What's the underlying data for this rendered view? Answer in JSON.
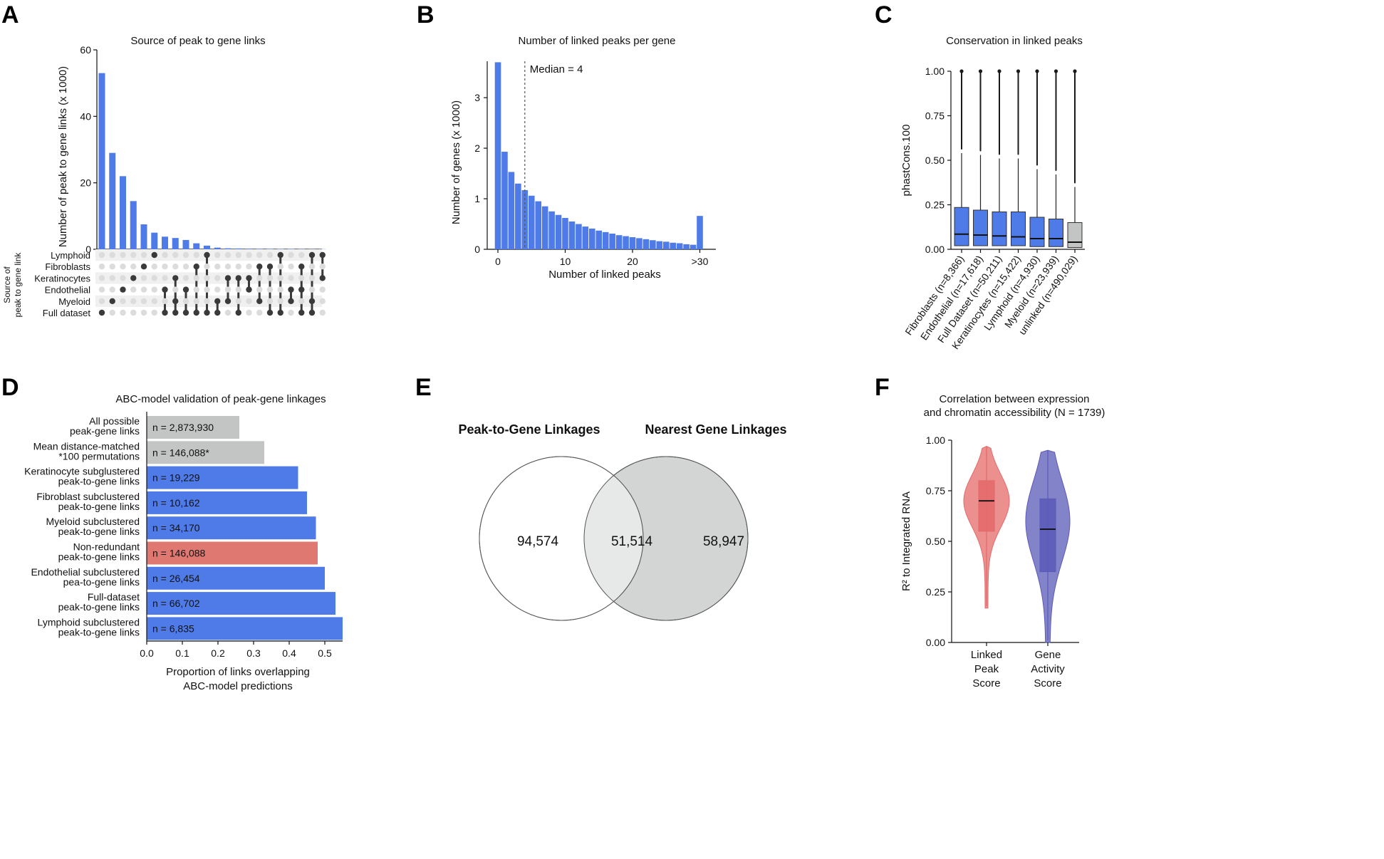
{
  "colors": {
    "blue": "#4f7be9",
    "gray": "#c3c5c5",
    "red": "#e07872",
    "dark": "#3a3a3a",
    "dot_off": "#dcdcdc",
    "stripe": "#f0f0f0",
    "violin_red": "#e46a6a",
    "violin_blue": "#5a5ab8",
    "venn_left": "#ffffff",
    "venn_overlap": "#e7e9e8",
    "venn_right": "#d2d5d4"
  },
  "chart_data": [
    {
      "panel": "A",
      "type": "bar",
      "title": "Source of peak to gene links",
      "ylabel": "Number of peak to gene links (x 1000)",
      "matrix_label": [
        "Source of",
        "peak to gene link"
      ],
      "ylim": [
        0,
        60
      ],
      "yticks": [
        0,
        20,
        40,
        60
      ],
      "sets": [
        "Lymphoid",
        "Fibroblasts",
        "Keratinocytes",
        "Endothelial",
        "Myeloid",
        "Full dataset"
      ],
      "values": [
        53,
        29,
        22,
        14.5,
        7.5,
        5,
        3.8,
        3.4,
        2.8,
        1.8,
        1.1,
        0.5,
        0.3,
        0.25,
        0.2,
        0.15,
        0.12,
        0.1,
        0.1,
        0.08,
        0.06,
        0.05
      ],
      "intersections": [
        [
          5
        ],
        [
          4
        ],
        [
          3
        ],
        [
          2
        ],
        [
          1
        ],
        [
          0
        ],
        [
          3,
          5
        ],
        [
          2,
          4,
          5
        ],
        [
          3,
          5
        ],
        [
          1,
          5
        ],
        [
          0,
          5
        ],
        [
          4,
          5
        ],
        [
          2,
          4
        ],
        [
          2,
          5
        ],
        [
          2,
          3
        ],
        [
          1,
          4
        ],
        [
          1,
          5
        ],
        [
          0,
          5
        ],
        [
          3,
          4
        ],
        [
          1,
          3,
          5
        ],
        [
          0,
          4,
          5
        ],
        [
          0,
          2
        ]
      ]
    },
    {
      "panel": "B",
      "type": "bar",
      "title": "Number of linked peaks per gene",
      "xlabel": "Number of linked peaks",
      "ylabel": "Number of genes (x 1000)",
      "xtick_labels": [
        "0",
        "10",
        "20",
        ">30"
      ],
      "xtick_positions": [
        0,
        10,
        20,
        30
      ],
      "ylim": [
        0,
        3.7
      ],
      "yticks": [
        0,
        1,
        2,
        3
      ],
      "x": [
        0,
        1,
        2,
        3,
        4,
        5,
        6,
        7,
        8,
        9,
        10,
        11,
        12,
        13,
        14,
        15,
        16,
        17,
        18,
        19,
        20,
        21,
        22,
        23,
        24,
        25,
        26,
        27,
        28,
        29,
        30
      ],
      "values": [
        3.7,
        1.93,
        1.53,
        1.3,
        1.17,
        1.06,
        0.95,
        0.85,
        0.75,
        0.68,
        0.62,
        0.55,
        0.5,
        0.45,
        0.41,
        0.37,
        0.34,
        0.31,
        0.28,
        0.26,
        0.24,
        0.22,
        0.2,
        0.18,
        0.16,
        0.15,
        0.13,
        0.12,
        0.1,
        0.09,
        0.66
      ],
      "median": 4,
      "median_label": "Median = 4"
    },
    {
      "panel": "C",
      "type": "boxplot",
      "title": "Conservation in linked peaks",
      "ylabel": "phastCons.100",
      "ylim": [
        0,
        1.0
      ],
      "yticks": [
        "0.00",
        "0.25",
        "0.50",
        "0.75",
        "1.00"
      ],
      "categories": [
        "Fibroblasts (n=8,366)",
        "Endothelial (n=17,618)",
        "Full Dataset (n=50,211)",
        "Keratinocytes (n=15,422)",
        "Lymphoid (n=4,930)",
        "Myeloid (n=23,939)",
        "unlinked (n=490,029)"
      ],
      "boxes": [
        {
          "q1": 0.02,
          "median": 0.085,
          "q3": 0.235,
          "whisker_high": 0.54,
          "outlier_from": 0.56,
          "color": "blue"
        },
        {
          "q1": 0.02,
          "median": 0.08,
          "q3": 0.22,
          "whisker_high": 0.53,
          "outlier_from": 0.55,
          "color": "blue"
        },
        {
          "q1": 0.02,
          "median": 0.075,
          "q3": 0.21,
          "whisker_high": 0.51,
          "outlier_from": 0.53,
          "color": "blue"
        },
        {
          "q1": 0.02,
          "median": 0.07,
          "q3": 0.21,
          "whisker_high": 0.51,
          "outlier_from": 0.53,
          "color": "blue"
        },
        {
          "q1": 0.015,
          "median": 0.06,
          "q3": 0.18,
          "whisker_high": 0.45,
          "outlier_from": 0.47,
          "color": "blue"
        },
        {
          "q1": 0.015,
          "median": 0.06,
          "q3": 0.17,
          "whisker_high": 0.42,
          "outlier_from": 0.44,
          "color": "blue"
        },
        {
          "q1": 0.01,
          "median": 0.04,
          "q3": 0.15,
          "whisker_high": 0.35,
          "outlier_from": 0.37,
          "color": "gray"
        }
      ]
    },
    {
      "panel": "D",
      "type": "bar",
      "orientation": "horizontal",
      "title": "ABC-model validation of peak-gene linkages",
      "xlabel": [
        "Proportion of links overlapping",
        "ABC-model predictions"
      ],
      "xlim": [
        0,
        0.55
      ],
      "xticks": [
        "0.0",
        "0.1",
        "0.2",
        "0.3",
        "0.4",
        "0.5"
      ],
      "categories": [
        [
          "All possible",
          "peak-gene links"
        ],
        [
          "Mean distance-matched",
          "*100 permutations"
        ],
        [
          "Keratinocyte subglustered",
          "peak-to-gene links"
        ],
        [
          "Fibroblast subclustered",
          "peak-to-gene links"
        ],
        [
          "Myeloid subclustered",
          "peak-to-gene links"
        ],
        [
          "Non-redundant",
          "peak-to-gene links"
        ],
        [
          "Endothelial subclustered",
          "pea-to-gene links"
        ],
        [
          "Full-dataset",
          "peak-to-gene links"
        ],
        [
          "Lymphoid subclustered",
          "peak-to-gene links"
        ]
      ],
      "values": [
        0.26,
        0.33,
        0.425,
        0.45,
        0.475,
        0.48,
        0.5,
        0.53,
        0.55
      ],
      "labels": [
        "n = 2,873,930",
        "n = 146,088*",
        "n = 19,229",
        "n = 10,162",
        "n = 34,170",
        "n = 146,088",
        "n = 26,454",
        "n = 66,702",
        "n = 6,835"
      ],
      "bar_colors": [
        "gray",
        "gray",
        "blue",
        "blue",
        "blue",
        "red",
        "blue",
        "blue",
        "blue"
      ]
    },
    {
      "panel": "E",
      "type": "venn",
      "set_labels": [
        "Peak-to-Gene Linkages",
        "Nearest Gene Linkages"
      ],
      "left_only": "94,574",
      "overlap": "51,514",
      "right_only": "58,947"
    },
    {
      "panel": "F",
      "type": "violin",
      "title": [
        "Correlation between expression",
        "and chromatin accessibility (N = 1739)"
      ],
      "ylabel": "R² to Integrated RNA",
      "ylim": [
        0,
        1.0
      ],
      "yticks": [
        "0.00",
        "0.25",
        "0.50",
        "0.75",
        "1.00"
      ],
      "categories": [
        [
          "Linked",
          "Peak",
          "Score"
        ],
        [
          "Gene",
          "Activity",
          "Score"
        ]
      ],
      "violins": [
        {
          "q1": 0.55,
          "median": 0.7,
          "q3": 0.8,
          "min": 0.17,
          "max": 0.97,
          "whisker_low": 0.18,
          "whisker_high": 0.97,
          "color": "violin_red"
        },
        {
          "q1": 0.35,
          "median": 0.56,
          "q3": 0.71,
          "min": 0.0,
          "max": 0.95,
          "whisker_low": 0.01,
          "whisker_high": 0.95,
          "color": "violin_blue"
        }
      ]
    }
  ]
}
